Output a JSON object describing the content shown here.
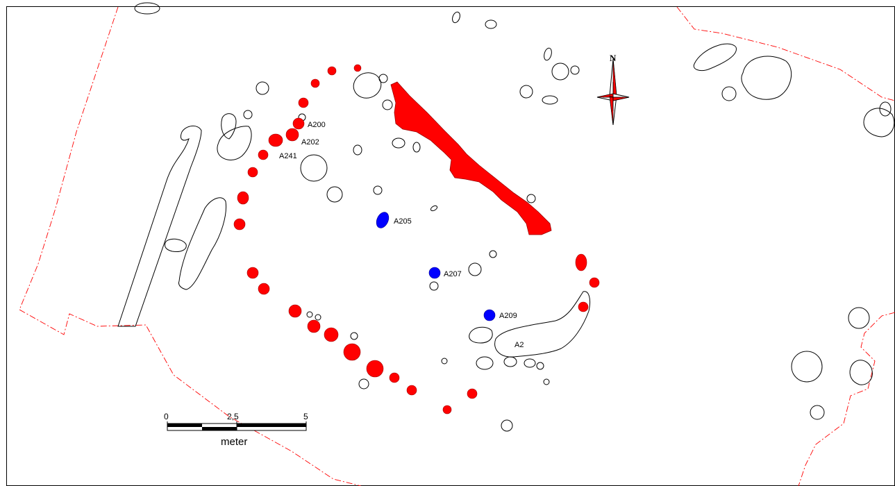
{
  "labels": {
    "a200": "A200",
    "a202": "A202",
    "a241": "A241",
    "a205": "A205",
    "a207": "A207",
    "a209": "A209",
    "a2": "A2"
  },
  "north_arrow": {
    "letter": "N"
  },
  "scale_bar": {
    "tick_0": "0",
    "tick_mid": "2,5",
    "tick_end": "5",
    "unit": "meter"
  },
  "colors": {
    "posthole_red": "#ff0000",
    "posthole_blue": "#0000ff",
    "boundary": "#ff0000",
    "outline": "#000000"
  },
  "icons": [
    "north-arrow-icon",
    "scale-bar"
  ]
}
